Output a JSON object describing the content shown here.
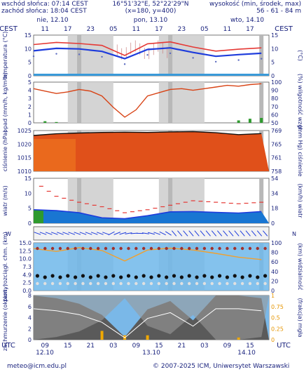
{
  "header": {
    "sunrise": "wschód słońca: 07:14 CEST",
    "sunset": "zachód słońca: 18:04 CEST",
    "coords": "16°51'32\"E, 52°22'29\"N",
    "grid": "(x=180, y=400)",
    "elev_label": "wysokość (min, środek, max)",
    "elev_values": "56 - 61 - 84 m"
  },
  "days_top": [
    "nie, 12.10",
    "pon, 13.10",
    "wto, 14.10"
  ],
  "days_bottom": [
    "12.10",
    "13.10",
    "14.10"
  ],
  "tz_top": "CEST",
  "tz_bottom": "UTC",
  "hours_top": [
    "11",
    "17",
    "23",
    "05",
    "11",
    "17",
    "23",
    "05",
    "11",
    "17"
  ],
  "hours_bottom": [
    "09",
    "15",
    "21",
    "03",
    "09",
    "15",
    "21",
    "03",
    "09",
    "15"
  ],
  "footer": {
    "email": "meteo@icm.edu.pl",
    "copyright": "© 2007-2025 ICM, Uniwersytet Warszawski"
  },
  "colors": {
    "text": "#1a237e",
    "temp_max": "#e53935",
    "temp_mean": "#1e3cdc",
    "humidity": "#d84315",
    "precip": "#2e9a2e",
    "wind_gust": "#e53935",
    "wind_speed": "#1e3cdc",
    "night_band": "#d4d4d4",
    "water_band": "#3a9ad9"
  },
  "chart_data": [
    {
      "type": "line",
      "panel": "temperature",
      "ylabel_left": "temperatura (°C)",
      "ylabel_right": "(°C)",
      "ylim": [
        0,
        15
      ],
      "yticks": [
        0,
        5,
        10,
        15
      ],
      "x_hours": [
        0,
        6,
        12,
        18,
        24,
        30,
        36,
        42,
        48,
        54,
        60
      ],
      "series": [
        {
          "key": "temp_max",
          "values": [
            11.5,
            12.3,
            11.9,
            11.2,
            7.5,
            11.8,
            12.5,
            10.6,
            9.1,
            9.8,
            10.3
          ]
        },
        {
          "key": "temp_mean",
          "values": [
            9.2,
            10.1,
            9.9,
            9.0,
            6.3,
            9.7,
            10.3,
            8.6,
            7.2,
            7.8,
            8.3
          ]
        }
      ]
    },
    {
      "type": "line",
      "panel": "precipitation_humidity",
      "ylabel_left": "opad (mm/h, kg/m²h)",
      "ylabel_right": "(%) wilgotność wzgl.",
      "ylim": [
        0,
        5
      ],
      "yticks": [
        0,
        1,
        2,
        3,
        4,
        5
      ],
      "y2lim": [
        50,
        100
      ],
      "y2ticks": [
        50,
        60,
        70,
        80,
        90,
        100
      ],
      "x_hours": [
        0,
        3,
        6,
        9,
        12,
        15,
        18,
        21,
        24,
        27,
        30,
        33,
        36,
        39,
        42,
        45,
        48,
        51,
        54,
        57,
        60
      ],
      "humidity": [
        92,
        89,
        86,
        88,
        91,
        89,
        83,
        69,
        57,
        66,
        83,
        87,
        91,
        92,
        90,
        92,
        94,
        96,
        95,
        97,
        98
      ],
      "precip": [
        0,
        0.2,
        0.1,
        0,
        0,
        0,
        0,
        0,
        0,
        0,
        0,
        0,
        0,
        0,
        0,
        0,
        0,
        0,
        0.3,
        0.5,
        0.6
      ]
    },
    {
      "type": "line",
      "panel": "pressure",
      "ylabel_left": "ciśnienie (hPa)",
      "ylabel_right": "(mm Hg) ciśnienie",
      "ylim": [
        1010,
        1025
      ],
      "yticks": [
        1010,
        1015,
        1020,
        1025
      ],
      "y2ticks": [
        "758",
        "761",
        "765",
        "769"
      ],
      "x_hours": [
        0,
        6,
        12,
        18,
        24,
        30,
        36,
        42,
        48,
        54,
        60
      ],
      "values": [
        1023.2,
        1023.8,
        1024.1,
        1024.3,
        1024.4,
        1024.3,
        1024.5,
        1024.6,
        1024.2,
        1023.5,
        1023.9
      ]
    },
    {
      "type": "line",
      "panel": "wind",
      "ylabel_left": "wiatr (m/s)",
      "ylabel_right": "(km/h) wiatr",
      "ylim": [
        0,
        15
      ],
      "yticks": [
        0,
        5,
        10,
        15
      ],
      "y2ticks": [
        "0",
        "18",
        "34",
        "54"
      ],
      "x_hours": [
        0,
        6,
        12,
        18,
        24,
        30,
        36,
        42,
        48,
        54,
        60
      ],
      "series": [
        {
          "key": "wind_gust",
          "values": [
            14.0,
            9.0,
            7.0,
            5.5,
            3.5,
            4.5,
            6.0,
            7.5,
            7.0,
            6.5,
            7.0
          ]
        },
        {
          "key": "wind_speed",
          "values": [
            4.5,
            4.2,
            3.5,
            1.8,
            1.5,
            2.5,
            3.8,
            3.9,
            3.6,
            3.4,
            3.9
          ]
        }
      ]
    },
    {
      "type": "scatter",
      "panel": "visibility_clouds",
      "ylabel_left": "pion. rozciągł. chm. (km)",
      "ylabel_right": "(km) widzialność",
      "ylim": [
        0,
        15
      ],
      "yticks": [
        "0.0",
        "2.5",
        "4.9",
        "7.3",
        "10.0",
        "12.5",
        "15.0"
      ],
      "y2ticks": [
        0,
        20,
        40,
        60,
        80,
        100
      ],
      "x_hours": [
        0,
        6,
        12,
        18,
        24,
        30,
        36,
        42,
        48,
        54,
        60
      ],
      "visibility_km": [
        88,
        82,
        90,
        84,
        62,
        85,
        89,
        85,
        78,
        70,
        65
      ]
    },
    {
      "type": "area",
      "panel": "cloud_fog",
      "ylabel_left": "zachmurzenie (oktanty)",
      "ylabel_right": "(frakcja) mgła",
      "ylim": [
        0,
        8
      ],
      "yticks": [
        0,
        2,
        4,
        6,
        8
      ],
      "y2lim": [
        0,
        1
      ],
      "y2ticks": [
        "0",
        "0.25",
        "0.5",
        "0.75",
        "1"
      ],
      "x_hours": [
        0,
        6,
        12,
        18,
        24,
        30,
        36,
        42,
        48,
        54,
        60
      ],
      "cloud_total": [
        8,
        7.5,
        6.5,
        4.5,
        0.5,
        5.5,
        7,
        3.5,
        8,
        8,
        7.5
      ],
      "fog_fraction": [
        0,
        0,
        0,
        0.2,
        0.1,
        0.1,
        0,
        0,
        0,
        0.05,
        0
      ]
    }
  ]
}
